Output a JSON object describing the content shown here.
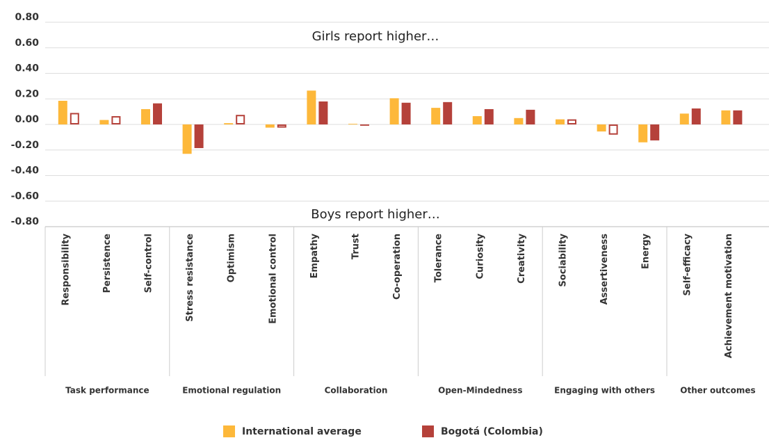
{
  "chart_data": {
    "type": "bar",
    "annotations": [
      "Girls report higher…",
      "Boys report higher…"
    ],
    "groups": [
      {
        "label": "Task performance",
        "categories": [
          "Responsibility",
          "Persistence",
          "Self-control"
        ]
      },
      {
        "label": "Emotional regulation",
        "categories": [
          "Stress resistance",
          "Optimism",
          "Emotional control"
        ]
      },
      {
        "label": "Collaboration",
        "categories": [
          "Empathy",
          "Trust",
          "Co-operation"
        ]
      },
      {
        "label": "Open-Mindedness",
        "categories": [
          "Tolerance",
          "Curiosity",
          "Creativity"
        ]
      },
      {
        "label": "Engaging with others",
        "categories": [
          "Sociability",
          "Assertiveness",
          "Energy"
        ]
      },
      {
        "label": "Other outcomes",
        "categories": [
          "Self-efficacy",
          "Achievement motivation"
        ]
      }
    ],
    "series": [
      {
        "name": "International average",
        "color": "#fdb83a",
        "values": [
          0.185,
          0.035,
          0.12,
          -0.23,
          0.01,
          -0.025,
          0.265,
          0.005,
          0.205,
          0.13,
          0.065,
          0.05,
          0.04,
          -0.055,
          -0.14,
          0.085,
          0.11
        ]
      },
      {
        "name": "Bogotá (Colombia)",
        "color": "#b5413a",
        "values": [
          0.09,
          0.065,
          0.165,
          -0.185,
          0.075,
          -0.025,
          0.18,
          -0.01,
          0.17,
          0.175,
          0.12,
          0.115,
          0.04,
          -0.08,
          -0.125,
          0.125,
          0.11
        ],
        "outline": [
          true,
          true,
          false,
          false,
          true,
          true,
          false,
          false,
          false,
          false,
          false,
          false,
          true,
          true,
          false,
          false,
          false
        ]
      }
    ],
    "ylim": [
      -0.8,
      0.8
    ],
    "yticks": [
      {
        "value": 0.8,
        "label": "0.80"
      },
      {
        "value": 0.6,
        "label": "0.60"
      },
      {
        "value": 0.4,
        "label": "0.40"
      },
      {
        "value": 0.2,
        "label": "0.20"
      },
      {
        "value": 0,
        "label": "0.00"
      },
      {
        "value": -0.2,
        "label": "-0.20"
      },
      {
        "value": -0.4,
        "label": "-0.40"
      },
      {
        "value": -0.6,
        "label": "-0.60"
      },
      {
        "value": -0.8,
        "label": "-0.80"
      }
    ],
    "grid": true
  }
}
